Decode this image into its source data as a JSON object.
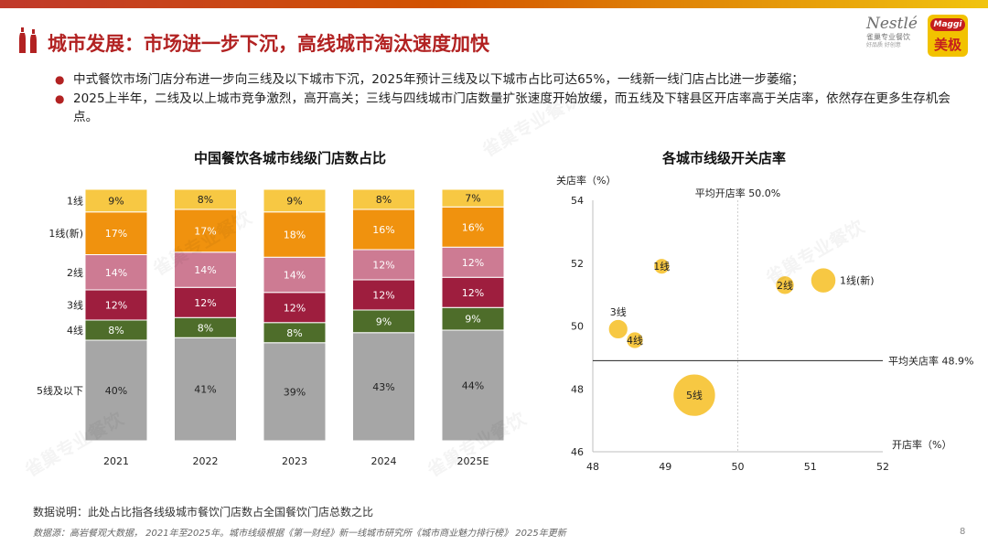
{
  "title": "城市发展：市场进一步下沉，高线城市淘汰速度加快",
  "logo": {
    "nestle_brand": "Nestlé",
    "nestle_sub": "雀巢专业餐饮",
    "nestle_sub2": "好品质 好创意",
    "maggi_brand": "Maggi",
    "maggi_cn": "美极"
  },
  "bullets": [
    "中式餐饮市场门店分布进一步向三线及以下城市下沉，2025年预计三线及以下城市占比可达65%，一线新一线门店占比进一步萎缩；",
    "2025上半年，二线及以上城市竞争激烈，高开高关；三线与四线城市门店数量扩张速度开始放缓，而五线及下辖县区开店率高于关店率，依然存在更多生存机会点。"
  ],
  "note": "数据说明：此处占比指各线级城市餐饮门店数占全国餐饮门店总数之比",
  "source": "数据源：高岩餐观大数据，  2021年至2025年。城市线级根据《第一财经》新一线城市研究所《城市商业魅力排行榜》 2025年更新",
  "page_number": "8",
  "watermark": "雀巢专业餐饮",
  "colors": {
    "tier1": "#f7c843",
    "tier1_new": "#f0920e",
    "tier2": "#cd7b93",
    "tier3": "#9e1e3e",
    "tier4": "#4e6d2a",
    "tier5": "#a6a6a6",
    "bubble": "#f7c843",
    "title_red": "#b22222"
  },
  "chart_data": [
    {
      "type": "bar",
      "stacked": true,
      "percent_stacked": true,
      "title": "中国餐饮各城市线级门店数占比",
      "categories": [
        "2021",
        "2022",
        "2023",
        "2024",
        "2025E"
      ],
      "series": [
        {
          "name": "5线及以下",
          "values": [
            40,
            41,
            39,
            43,
            44
          ],
          "color": "#a6a6a6"
        },
        {
          "name": "4线",
          "values": [
            8,
            8,
            8,
            9,
            9
          ],
          "color": "#4e6d2a"
        },
        {
          "name": "3线",
          "values": [
            12,
            12,
            12,
            12,
            12
          ],
          "color": "#9e1e3e"
        },
        {
          "name": "2线",
          "values": [
            14,
            14,
            14,
            12,
            12
          ],
          "color": "#cd7b93"
        },
        {
          "name": "1线(新)",
          "values": [
            17,
            17,
            18,
            16,
            16
          ],
          "color": "#f0920e"
        },
        {
          "name": "1线",
          "values": [
            9,
            8,
            9,
            8,
            7
          ],
          "color": "#f7c843"
        }
      ],
      "value_suffix": "%",
      "grid": false,
      "legend": "left-labels"
    },
    {
      "type": "scatter",
      "subtype": "bubble",
      "title": "各城市线级开关店率",
      "xlabel": "开店率（%）",
      "ylabel": "关店率（%）",
      "xlim": [
        48,
        52
      ],
      "ylim": [
        46,
        54
      ],
      "xticks": [
        48,
        49,
        50,
        51,
        52
      ],
      "yticks": [
        46,
        48,
        50,
        52,
        54
      ],
      "points": [
        {
          "name": "1线",
          "x": 48.95,
          "y": 51.9,
          "size": 0.4,
          "label_inside": true
        },
        {
          "name": "1线(新)",
          "x": 51.18,
          "y": 51.45,
          "size": 1.0,
          "label_inside": false
        },
        {
          "name": "2线",
          "x": 50.65,
          "y": 51.3,
          "size": 0.55,
          "label_inside": true
        },
        {
          "name": "3线",
          "x": 48.35,
          "y": 49.9,
          "size": 0.6,
          "label_inside": false
        },
        {
          "name": "4线",
          "x": 48.58,
          "y": 49.55,
          "size": 0.45,
          "label_inside": true
        },
        {
          "name": "5线",
          "x": 49.4,
          "y": 47.8,
          "size": 2.8,
          "label_inside": true
        }
      ],
      "reference_lines": [
        {
          "axis": "x",
          "value": 50.0,
          "label": "平均开店率 50.0%",
          "style": "dotted"
        },
        {
          "axis": "y",
          "value": 48.9,
          "label": "平均关店率 48.9%",
          "style": "solid"
        }
      ],
      "grid": false,
      "legend": "none"
    }
  ]
}
